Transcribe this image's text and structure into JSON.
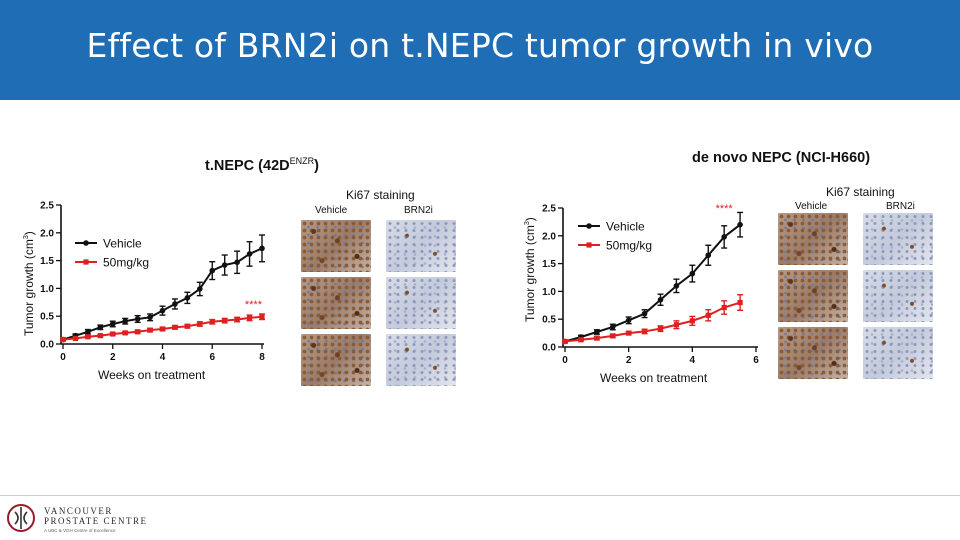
{
  "slide": {
    "title": "Effect of BRN2i on t.NEPC tumor growth in vivo",
    "header_color": "#1f6db5"
  },
  "left_panel": {
    "title_main": "t.NEPC (42D",
    "title_sup": "ENZR",
    "title_close": ")",
    "ylabel_main": "Tumor growth (cm",
    "ylabel_sup": "3",
    "ylabel_close": ")",
    "xlabel": "Weeks on treatment",
    "significance": "****",
    "staining_title": "Ki67 staining",
    "staining_col_vehicle": "Vehicle",
    "staining_col_brn2i": "BRN2i"
  },
  "right_panel": {
    "title": "de novo NEPC (NCI-H660)",
    "ylabel_main": "Tumor growth (cm",
    "ylabel_sup": "3",
    "ylabel_close": ")",
    "xlabel": "Weeks on treatment",
    "significance": "****",
    "staining_title": "Ki67 staining",
    "staining_col_vehicle": "Vehicle",
    "staining_col_brn2i": "BRN2i"
  },
  "logo": {
    "line1": "VANCOUVER",
    "line2": "PROSTATE CENTRE",
    "line3": "A UBC & VGH Centre of Excellence"
  },
  "chart_data": [
    {
      "type": "line",
      "xlim": [
        0,
        8
      ],
      "ylim": [
        0,
        2.5
      ],
      "xticks": [
        0,
        2,
        4,
        6,
        8
      ],
      "yticks": [
        0.0,
        0.5,
        1.0,
        1.5,
        2.0,
        2.5
      ],
      "ytick_labels": [
        "0.0",
        "0.5",
        "1.0",
        "1.5",
        "2.0",
        "2.5"
      ],
      "legend_position": "top-left",
      "series": [
        {
          "name": "Vehicle",
          "color": "#111111",
          "x": [
            0,
            0.5,
            1,
            1.5,
            2,
            2.5,
            3,
            3.5,
            4,
            4.5,
            5,
            5.5,
            6,
            6.5,
            7,
            7.5,
            8
          ],
          "y": [
            0.08,
            0.15,
            0.22,
            0.3,
            0.36,
            0.41,
            0.45,
            0.48,
            0.6,
            0.72,
            0.83,
            0.99,
            1.32,
            1.42,
            1.47,
            1.62,
            1.72
          ],
          "err": [
            0.02,
            0.03,
            0.04,
            0.04,
            0.05,
            0.05,
            0.06,
            0.06,
            0.08,
            0.09,
            0.1,
            0.12,
            0.16,
            0.18,
            0.2,
            0.22,
            0.24
          ]
        },
        {
          "name": "50mg/kg",
          "color": "#e02020",
          "x": [
            0,
            0.5,
            1,
            1.5,
            2,
            2.5,
            3,
            3.5,
            4,
            4.5,
            5,
            5.5,
            6,
            6.5,
            7,
            7.5,
            8
          ],
          "y": [
            0.08,
            0.1,
            0.13,
            0.15,
            0.18,
            0.2,
            0.22,
            0.25,
            0.27,
            0.3,
            0.32,
            0.36,
            0.4,
            0.42,
            0.44,
            0.47,
            0.49
          ],
          "err": [
            0.01,
            0.01,
            0.02,
            0.02,
            0.02,
            0.02,
            0.03,
            0.03,
            0.03,
            0.03,
            0.03,
            0.04,
            0.04,
            0.04,
            0.04,
            0.05,
            0.05
          ]
        }
      ]
    },
    {
      "type": "line",
      "xlim": [
        0,
        6
      ],
      "ylim": [
        0,
        2.5
      ],
      "xticks": [
        0,
        2,
        4,
        6
      ],
      "yticks": [
        0.0,
        0.5,
        1.0,
        1.5,
        2.0,
        2.5
      ],
      "ytick_labels": [
        "0.0",
        "0.5",
        "1.0",
        "1.5",
        "2.0",
        "2.5"
      ],
      "legend_position": "top-left",
      "series": [
        {
          "name": "Vehicle",
          "color": "#111111",
          "x": [
            0,
            0.5,
            1,
            1.5,
            2,
            2.5,
            3,
            3.5,
            4,
            4.5,
            5,
            5.5
          ],
          "y": [
            0.1,
            0.18,
            0.27,
            0.36,
            0.48,
            0.6,
            0.85,
            1.1,
            1.32,
            1.65,
            1.98,
            2.2
          ],
          "err": [
            0.02,
            0.03,
            0.04,
            0.05,
            0.06,
            0.07,
            0.1,
            0.12,
            0.15,
            0.18,
            0.2,
            0.22
          ]
        },
        {
          "name": "50mg/kg",
          "color": "#e02020",
          "x": [
            0,
            0.5,
            1,
            1.5,
            2,
            2.5,
            3,
            3.5,
            4,
            4.5,
            5,
            5.5
          ],
          "y": [
            0.1,
            0.13,
            0.16,
            0.2,
            0.25,
            0.28,
            0.33,
            0.4,
            0.47,
            0.57,
            0.71,
            0.8
          ],
          "err": [
            0.02,
            0.02,
            0.03,
            0.03,
            0.03,
            0.04,
            0.05,
            0.07,
            0.08,
            0.1,
            0.12,
            0.14
          ]
        }
      ]
    }
  ]
}
